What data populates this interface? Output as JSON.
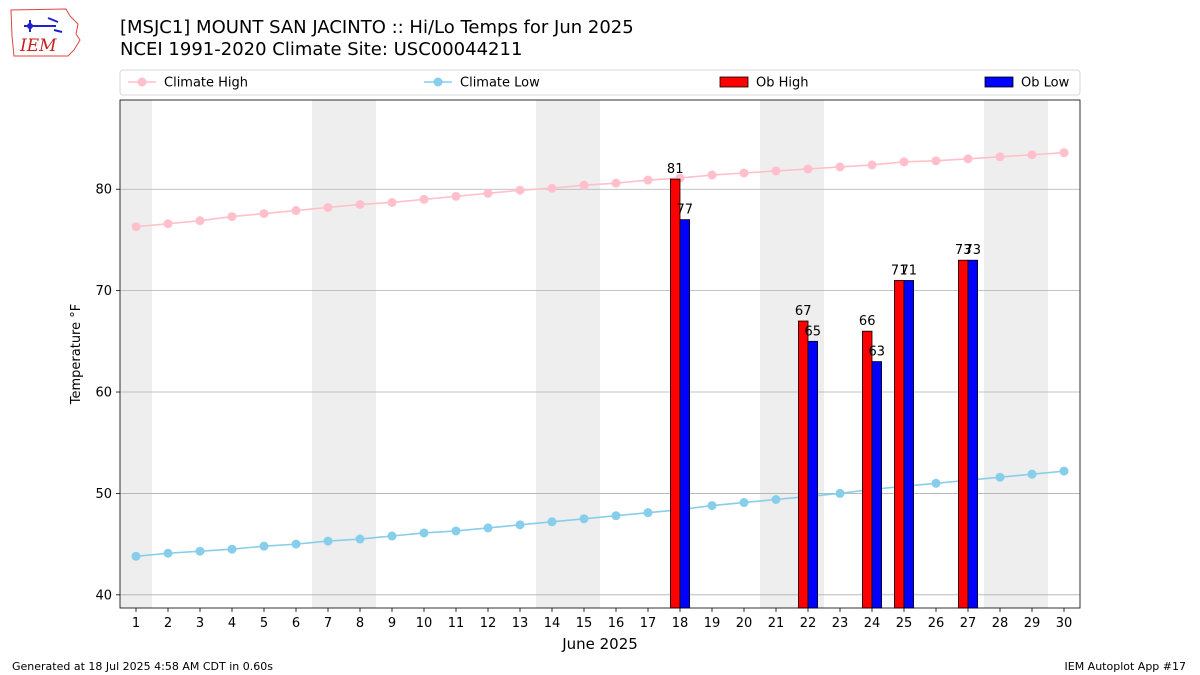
{
  "header": {
    "title_line1": "[MSJC1] MOUNT SAN JACINTO :: Hi/Lo Temps for Jun 2025",
    "title_line2": "NCEI 1991-2020 Climate Site: USC00044211",
    "logo_text": "IEM"
  },
  "footer": {
    "generated": "Generated at 18 Jul 2025 4:58 AM CDT in 0.60s",
    "app": "IEM Autoplot App #17"
  },
  "colors": {
    "climate_high": "#ffc0cb",
    "climate_low": "#87ceeb",
    "ob_high": "#ff0000",
    "ob_low": "#0000ff",
    "weekend_shade": "#eeeeee",
    "grid": "#b0b0b0"
  },
  "chart_data": {
    "type": "bar",
    "title": "[MSJC1] MOUNT SAN JACINTO :: Hi/Lo Temps for Jun 2025",
    "subtitle": "NCEI 1991-2020 Climate Site: USC00044211",
    "xlabel": "June 2025",
    "ylabel": "Temperature °F",
    "xlim": [
      0.5,
      30.5
    ],
    "ylim": [
      38.7,
      88.8
    ],
    "yticks": [
      40,
      50,
      60,
      70,
      80
    ],
    "grid": "y-major",
    "legend_placement": "top",
    "weekend_shaded_days": [
      1,
      7,
      8,
      14,
      15,
      21,
      22,
      28,
      29
    ],
    "days": [
      1,
      2,
      3,
      4,
      5,
      6,
      7,
      8,
      9,
      10,
      11,
      12,
      13,
      14,
      15,
      16,
      17,
      18,
      19,
      20,
      21,
      22,
      23,
      24,
      25,
      26,
      27,
      28,
      29,
      30
    ],
    "series": [
      {
        "name": "Climate High",
        "kind": "line",
        "values": [
          76.3,
          76.6,
          76.9,
          77.3,
          77.6,
          77.9,
          78.2,
          78.5,
          78.7,
          79.0,
          79.3,
          79.6,
          79.9,
          80.1,
          80.4,
          80.6,
          80.9,
          81.1,
          81.4,
          81.6,
          81.8,
          82.0,
          82.2,
          82.4,
          82.7,
          82.8,
          83.0,
          83.2,
          83.4,
          83.6
        ]
      },
      {
        "name": "Climate Low",
        "kind": "line",
        "values": [
          43.8,
          44.1,
          44.3,
          44.5,
          44.8,
          45.0,
          45.3,
          45.5,
          45.8,
          46.1,
          46.3,
          46.6,
          46.9,
          47.2,
          47.5,
          47.8,
          48.1,
          48.4,
          48.8,
          49.1,
          49.4,
          49.7,
          50.0,
          50.4,
          50.7,
          51.0,
          51.3,
          51.6,
          51.9,
          52.2
        ]
      },
      {
        "name": "Ob High",
        "kind": "bar",
        "points": [
          {
            "day": 18,
            "value": 81
          },
          {
            "day": 22,
            "value": 67
          },
          {
            "day": 24,
            "value": 66
          },
          {
            "day": 25,
            "value": 71
          },
          {
            "day": 27,
            "value": 73
          }
        ]
      },
      {
        "name": "Ob Low",
        "kind": "bar",
        "points": [
          {
            "day": 18,
            "value": 77
          },
          {
            "day": 22,
            "value": 65
          },
          {
            "day": 24,
            "value": 63
          },
          {
            "day": 25,
            "value": 71
          },
          {
            "day": 27,
            "value": 73
          }
        ]
      }
    ]
  }
}
